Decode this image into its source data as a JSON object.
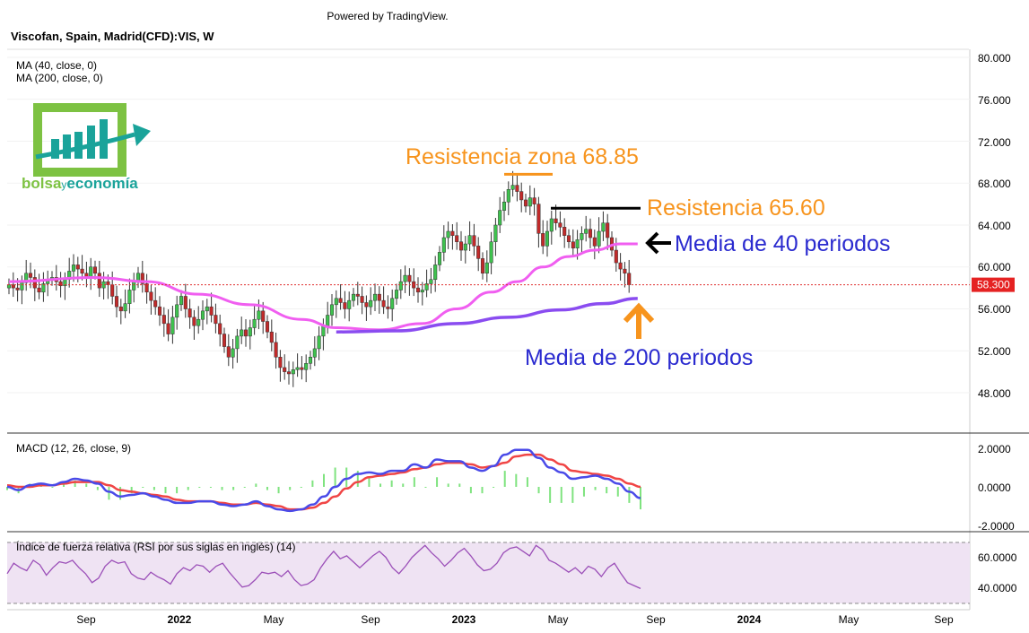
{
  "header": {
    "powered_by": "Powered by TradingView.",
    "symbol_title": "Viscofan, Spain, Madrid(CFD):VIS, W",
    "ma40_label": "MA (40, close, 0)",
    "ma200_label": "MA (200, close, 0)"
  },
  "logo": {
    "text_left": "bolsa",
    "text_mid": "y",
    "text_right": "economía",
    "color_green": "#7dc242",
    "color_teal": "#1aa39a"
  },
  "annotations": {
    "res_zone": "Resistencia zona 68.85",
    "res_6560": "Resistencia 65.60",
    "ma40_note": "Media de 40 periodos",
    "ma200_note": "Media de 200 periodos",
    "color_orange": "#f7941d",
    "color_blue": "#2a2acf"
  },
  "price_axis": {
    "ticks": [
      "80.000",
      "76.000",
      "72.000",
      "68.000",
      "64.000",
      "60.000",
      "56.000",
      "52.000",
      "48.000"
    ],
    "last_price": "58.300"
  },
  "macd_panel": {
    "label": "MACD (12, 26, close, 9)",
    "ticks": [
      "2.0000",
      "0.0000",
      "-2.0000"
    ]
  },
  "rsi_panel": {
    "label": "Índice de fuerza relativa (RSI por sus siglas en inglés) (14)",
    "ticks": [
      "60.0000",
      "40.0000"
    ]
  },
  "time_axis": {
    "labels": [
      "Sep",
      "2022",
      "May",
      "Sep",
      "2023",
      "May",
      "Sep",
      "2024",
      "May",
      "Sep"
    ]
  },
  "chart_data": {
    "type": "candlestick",
    "timeframe": "W",
    "ylim": [
      46,
      81
    ],
    "close": [
      58.3,
      58.0,
      57.8,
      58.5,
      59.4,
      59.0,
      58.0,
      57.6,
      58.4,
      58.8,
      59.0,
      58.6,
      58.2,
      58.8,
      59.6,
      60.2,
      59.8,
      59.4,
      59.0,
      60.0,
      59.4,
      58.0,
      58.6,
      58.3,
      57.2,
      56.2,
      55.8,
      56.5,
      57.8,
      58.6,
      59.4,
      58.4,
      57.6,
      56.8,
      56.2,
      55.4,
      54.6,
      53.6,
      55.2,
      56.4,
      57.2,
      56.0,
      55.2,
      54.4,
      55.0,
      55.8,
      56.2,
      55.4,
      54.6,
      53.6,
      52.4,
      51.4,
      52.2,
      53.4,
      54.0,
      53.4,
      54.2,
      55.0,
      55.8,
      54.8,
      53.8,
      52.8,
      51.4,
      50.4,
      50.0,
      49.8,
      50.2,
      50.4,
      50.2,
      50.8,
      51.4,
      52.2,
      53.4,
      54.4,
      55.4,
      56.4,
      57.0,
      56.6,
      56.0,
      56.8,
      57.4,
      57.2,
      56.6,
      56.2,
      56.8,
      57.4,
      56.8,
      56.2,
      56.0,
      57.0,
      57.8,
      58.6,
      59.2,
      58.6,
      58.0,
      57.6,
      57.8,
      58.4,
      58.8,
      60.2,
      61.4,
      62.8,
      63.4,
      63.0,
      62.4,
      61.6,
      62.2,
      63.0,
      62.0,
      60.8,
      59.4,
      60.4,
      62.4,
      64.0,
      65.4,
      66.2,
      67.4,
      67.8,
      67.2,
      66.4,
      65.8,
      66.6,
      66.0,
      63.2,
      62.0,
      63.4,
      64.6,
      64.2,
      63.8,
      63.0,
      62.4,
      61.8,
      62.6,
      63.2,
      63.6,
      62.8,
      62.0,
      63.4,
      64.2,
      62.8,
      61.6,
      60.4,
      59.8,
      59.4,
      58.3
    ],
    "ma40_levels": [
      {
        "x_index": 0,
        "y": 58.6
      },
      {
        "x_index": 20,
        "y": 59.0
      },
      {
        "x_index": 32,
        "y": 58.6
      },
      {
        "x_index": 44,
        "y": 57.4
      },
      {
        "x_index": 56,
        "y": 56.4
      },
      {
        "x_index": 68,
        "y": 55.0
      },
      {
        "x_index": 76,
        "y": 54.2
      },
      {
        "x_index": 86,
        "y": 54.0
      },
      {
        "x_index": 96,
        "y": 54.6
      },
      {
        "x_index": 104,
        "y": 56.0
      },
      {
        "x_index": 112,
        "y": 57.6
      },
      {
        "x_index": 118,
        "y": 58.6
      },
      {
        "x_index": 124,
        "y": 60.0
      },
      {
        "x_index": 130,
        "y": 61.0
      },
      {
        "x_index": 136,
        "y": 61.6
      },
      {
        "x_index": 142,
        "y": 62.2
      },
      {
        "x_index": 146,
        "y": 62.2
      }
    ],
    "ma200_levels": [
      {
        "x_index": 76,
        "y": 53.8
      },
      {
        "x_index": 90,
        "y": 53.9
      },
      {
        "x_index": 104,
        "y": 54.6
      },
      {
        "x_index": 116,
        "y": 55.2
      },
      {
        "x_index": 128,
        "y": 55.9
      },
      {
        "x_index": 138,
        "y": 56.5
      },
      {
        "x_index": 146,
        "y": 57.0
      }
    ],
    "resistance_zone": 68.85,
    "resistance": 65.6,
    "macd_ylim": [
      -2.4,
      2.4
    ],
    "macd": [
      0.0,
      -0.2,
      0.1,
      0.2,
      0.1,
      0.3,
      0.5,
      0.4,
      0.2,
      -0.3,
      -0.6,
      -0.5,
      -0.4,
      -0.6,
      -0.8,
      -1.0,
      -1.0,
      -0.9,
      -0.9,
      -1.1,
      -1.2,
      -1.1,
      -0.9,
      -1.2,
      -1.4,
      -1.5,
      -1.4,
      -1.1,
      -0.6,
      0.0,
      0.5,
      0.8,
      0.9,
      0.8,
      1.0,
      1.0,
      1.4,
      1.2,
      1.7,
      1.6,
      1.6,
      1.2,
      1.0,
      1.3,
      2.0,
      2.3,
      2.3,
      1.8,
      1.2,
      0.9,
      0.5,
      0.6,
      0.7,
      0.5,
      0.2,
      -0.3,
      -0.7
    ],
    "macd_signal": [
      0.1,
      0.0,
      0.0,
      0.1,
      0.1,
      0.2,
      0.3,
      0.3,
      0.3,
      0.1,
      -0.2,
      -0.3,
      -0.4,
      -0.5,
      -0.6,
      -0.8,
      -0.9,
      -0.9,
      -0.9,
      -1.0,
      -1.1,
      -1.1,
      -1.0,
      -1.1,
      -1.2,
      -1.4,
      -1.4,
      -1.3,
      -1.0,
      -0.6,
      -0.1,
      0.3,
      0.6,
      0.7,
      0.8,
      0.9,
      1.1,
      1.2,
      1.4,
      1.5,
      1.5,
      1.4,
      1.2,
      1.3,
      1.5,
      1.9,
      2.0,
      2.0,
      1.7,
      1.4,
      1.0,
      0.9,
      0.8,
      0.7,
      0.5,
      0.2,
      0.0
    ],
    "rsi_ylim": [
      25,
      72
    ],
    "rsi": [
      48,
      55,
      52,
      50,
      57,
      54,
      47,
      52,
      56,
      55,
      57,
      52,
      48,
      42,
      45,
      53,
      57,
      55,
      56,
      48,
      45,
      44,
      49,
      46,
      44,
      41,
      48,
      52,
      50,
      54,
      53,
      49,
      53,
      55,
      49,
      44,
      39,
      40,
      44,
      49,
      48,
      49,
      46,
      50,
      44,
      40,
      41,
      44,
      52,
      58,
      63,
      58,
      60,
      56,
      52,
      56,
      60,
      63,
      59,
      52,
      48,
      53,
      59,
      63,
      67,
      62,
      58,
      53,
      57,
      62,
      65,
      60,
      54,
      50,
      51,
      55,
      62,
      65,
      66,
      63,
      60,
      67,
      64,
      57,
      55,
      52,
      49,
      52,
      48,
      53,
      51,
      46,
      52,
      55,
      48,
      42,
      40,
      38
    ]
  }
}
